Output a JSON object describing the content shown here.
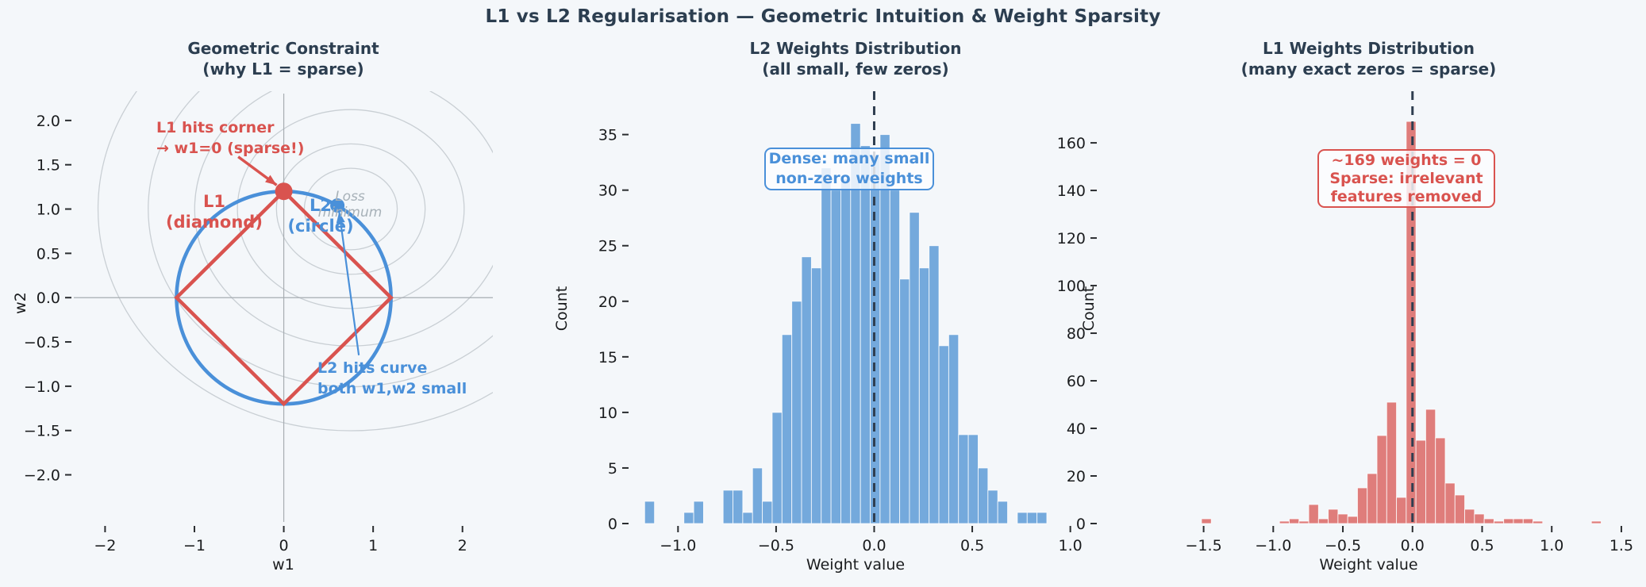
{
  "figure": {
    "title": "L1 vs L2 Regularisation — Geometric Intuition & Weight Sparsity"
  },
  "colors": {
    "red": "#d9534f",
    "blue": "#4a90d9",
    "bar_blue": "#74a9dc",
    "bar_red": "#df7d7b",
    "dash_line": "#2f3e50",
    "contour_gray": "#c9cfd4",
    "axis_gray": "#a7adb2",
    "tick_text": "#1a1c1e",
    "title_text": "#2c3e50",
    "background": "#f4f7fa"
  },
  "chart_data": [
    {
      "type": "line",
      "name": "geometric-constraint",
      "title_lines": [
        "Geometric Constraint",
        "(why L1 = sparse)"
      ],
      "xlabel": "w1",
      "ylabel": "w2",
      "xlim": [
        -2.35,
        2.34
      ],
      "ylim": [
        -2.55,
        2.33
      ],
      "xticks": {
        "values": [
          -2,
          -1,
          0,
          1,
          2
        ],
        "labels": [
          "−2",
          "−1",
          "0",
          "1",
          "2"
        ]
      },
      "yticks": {
        "values": [
          2.0,
          1.5,
          1.0,
          0.5,
          0.0,
          -0.5,
          -1.0,
          -1.5,
          -2.0
        ],
        "labels": [
          "2.0",
          "1.5",
          "1.0",
          "0.5",
          "0.0",
          "−0.5",
          "−1.0",
          "−1.5",
          "−2.0"
        ]
      },
      "constraint_radius": 1.2,
      "circle": {
        "radius": 1.2,
        "color": "#4a90d9",
        "linewidth": 4.5
      },
      "diamond": {
        "radius": 1.2,
        "color": "#d9534f",
        "linewidth": 4.5
      },
      "contours": {
        "center": [
          0.75,
          1.0
        ],
        "radii": [
          0.5,
          0.8,
          1.22,
          1.68,
          2.18,
          2.72
        ]
      },
      "points": [
        {
          "name": "l1-solution-dot",
          "xy": [
            0.0,
            1.2
          ],
          "color": "#d9534f",
          "r": 11
        },
        {
          "name": "l2-solution-dot",
          "xy": [
            0.6,
            1.04
          ],
          "color": "#4a90d9",
          "r": 9
        }
      ],
      "arrows": [
        {
          "name": "l1-corner-arrow",
          "color": "#d9534f",
          "from": [
            -0.51,
            1.59
          ],
          "to": [
            -0.08,
            1.27
          ],
          "width": 3.5
        },
        {
          "name": "l2-curve-arrow",
          "color": "#4a90d9",
          "from": [
            0.84,
            -0.65
          ],
          "to": [
            0.62,
            0.97
          ],
          "width": 2.2
        }
      ],
      "annotations": {
        "l1_corner": {
          "lines": [
            "L1 hits corner",
            "→ w1=0 (sparse!)"
          ]
        },
        "l1_label": {
          "lines": [
            "L1",
            "(diamond)"
          ]
        },
        "l2_label": {
          "lines": [
            "L2",
            "(circle)"
          ]
        },
        "loss_label": {
          "lines": [
            "Loss",
            "minimum"
          ]
        },
        "l2_curve": {
          "lines": [
            "L2 hits curve",
            "both w1,w2 small"
          ]
        }
      }
    },
    {
      "type": "bar",
      "name": "l2-weights-histogram",
      "title_lines": [
        "L2 Weights Distribution",
        "(all small, few zeros)"
      ],
      "xlabel": "Weight value",
      "ylabel": "Count",
      "xlim": [
        -1.24,
        1.05
      ],
      "ylim": [
        0,
        38.9
      ],
      "xticks": {
        "values": [
          -1.0,
          -0.5,
          0.0,
          0.5,
          1.0
        ],
        "labels": [
          "−1.0",
          "−0.5",
          "0.0",
          "0.5",
          "1.0"
        ]
      },
      "yticks": {
        "values": [
          0,
          5,
          10,
          15,
          20,
          25,
          30,
          35
        ],
        "labels": [
          "0",
          "5",
          "10",
          "15",
          "20",
          "25",
          "30",
          "35"
        ]
      },
      "bin_start": -1.17,
      "bin_width": 0.05,
      "counts": [
        2,
        0,
        0,
        0,
        1,
        2,
        0,
        0,
        3,
        3,
        1,
        5,
        2,
        10,
        17,
        20,
        24,
        23,
        32,
        30,
        31,
        36,
        34,
        33,
        35,
        30,
        22,
        28,
        23,
        25,
        16,
        17,
        8,
        8,
        5,
        3,
        2,
        0,
        1,
        1,
        1
      ],
      "bar_color": "#74a9dc",
      "vline_x": 0,
      "annotation": {
        "lines": [
          "Dense: many small",
          "non-zero weights"
        ]
      }
    },
    {
      "type": "bar",
      "name": "l1-weights-histogram",
      "title_lines": [
        "L1 Weights Distribution",
        "(many exact zeros = sparse)"
      ],
      "xlabel": "Weight value",
      "ylabel": "Count",
      "xlim": [
        -2.25,
        1.62
      ],
      "ylim": [
        0,
        181.7
      ],
      "xticks": {
        "values": [
          -1.5,
          -1.0,
          -0.5,
          0.0,
          0.5,
          1.0,
          1.5
        ],
        "labels": [
          "−1.5",
          "−1.0",
          "−0.5",
          "0.0",
          "0.5",
          "1.0",
          "1.5"
        ]
      },
      "yticks": {
        "values": [
          0,
          20,
          40,
          60,
          80,
          100,
          120,
          140,
          160
        ],
        "labels": [
          "0",
          "20",
          "40",
          "60",
          "80",
          "100",
          "120",
          "140",
          "160"
        ]
      },
      "bin_start": -1.515,
      "bin_width": 0.07,
      "counts": [
        2,
        0,
        0,
        0,
        0,
        0,
        0,
        0,
        1,
        2,
        1,
        8,
        2,
        6,
        4,
        3,
        15,
        21,
        37,
        51,
        11,
        169,
        35,
        48,
        36,
        17,
        12,
        6,
        4,
        2,
        1,
        2,
        2,
        2,
        1,
        0,
        0,
        0,
        0,
        0,
        1
      ],
      "bar_color": "#df7d7b",
      "zero_weights_count": 169,
      "vline_x": 0,
      "annotation": {
        "lines": [
          "~169 weights = 0",
          "Sparse: irrelevant",
          "features removed"
        ]
      }
    }
  ]
}
